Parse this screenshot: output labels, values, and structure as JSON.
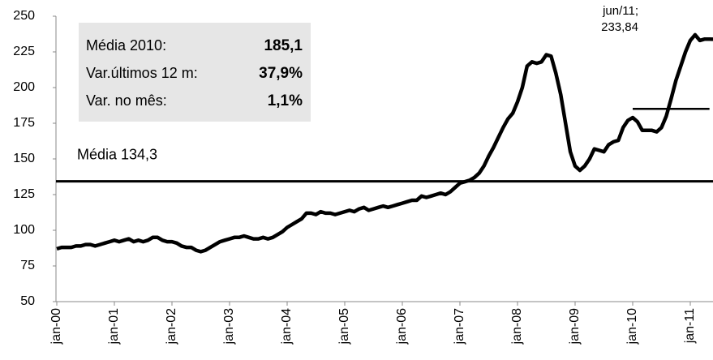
{
  "chart_data": {
    "type": "line",
    "categories": [
      "jan-00",
      null,
      null,
      null,
      null,
      null,
      null,
      null,
      null,
      null,
      null,
      null,
      "jan-01",
      null,
      null,
      null,
      null,
      null,
      null,
      null,
      null,
      null,
      null,
      null,
      "jan-02",
      null,
      null,
      null,
      null,
      null,
      null,
      null,
      null,
      null,
      null,
      null,
      "jan-03",
      null,
      null,
      null,
      null,
      null,
      null,
      null,
      null,
      null,
      null,
      null,
      "jan-04",
      null,
      null,
      null,
      null,
      null,
      null,
      null,
      null,
      null,
      null,
      null,
      "jan-05",
      null,
      null,
      null,
      null,
      null,
      null,
      null,
      null,
      null,
      null,
      null,
      "jan-06",
      null,
      null,
      null,
      null,
      null,
      null,
      null,
      null,
      null,
      null,
      null,
      "jan-07",
      null,
      null,
      null,
      null,
      null,
      null,
      null,
      null,
      null,
      null,
      null,
      "jan-08",
      null,
      null,
      null,
      null,
      null,
      null,
      null,
      null,
      null,
      null,
      null,
      "jan-09",
      null,
      null,
      null,
      null,
      null,
      null,
      null,
      null,
      null,
      null,
      null,
      "jan-10",
      null,
      null,
      null,
      null,
      null,
      null,
      null,
      null,
      null,
      null,
      null,
      "jan-11",
      null,
      null,
      null,
      null,
      null
    ],
    "series": [
      {
        "color": "#000000",
        "values": [
          87,
          88,
          88,
          88,
          89,
          89,
          90,
          90,
          89,
          90,
          91,
          92,
          93,
          92,
          93,
          94,
          92,
          93,
          92,
          93,
          95,
          95,
          93,
          92,
          92,
          91,
          89,
          88,
          88,
          86,
          85,
          86,
          88,
          90,
          92,
          93,
          94,
          95,
          95,
          96,
          95,
          94,
          94,
          95,
          94,
          95,
          97,
          99,
          102,
          104,
          106,
          108,
          112,
          112,
          111,
          113,
          112,
          112,
          111,
          112,
          113,
          114,
          113,
          115,
          116,
          114,
          115,
          116,
          117,
          116,
          117,
          118,
          119,
          120,
          121,
          121,
          124,
          123,
          124,
          125,
          126,
          125,
          127,
          130,
          133,
          134,
          135,
          137,
          140,
          145,
          152,
          158,
          165,
          172,
          178,
          182,
          190,
          200,
          215,
          218,
          217,
          218,
          223,
          222,
          210,
          195,
          175,
          155,
          145,
          142,
          145,
          150,
          157,
          156,
          155,
          160,
          162,
          163,
          172,
          177,
          179,
          176,
          170,
          170,
          170,
          169,
          172,
          180,
          192,
          205,
          215,
          225,
          233,
          237,
          233,
          234,
          234,
          233.84
        ]
      }
    ],
    "ylim": [
      50,
      250
    ],
    "yticks": [
      50,
      75,
      100,
      125,
      150,
      175,
      200,
      225,
      250
    ],
    "reference_lines": [
      {
        "label": "Média 134,3",
        "value": 134.3
      },
      {
        "value": 185.1
      }
    ],
    "stats": [
      {
        "label": "Média 2010:",
        "value": 185.1,
        "value_label": "185,1"
      },
      {
        "label": "Var.últimos 12 m:",
        "value": 37.9,
        "value_label": "37,9%"
      },
      {
        "label": "Var. no mês:",
        "value": 1.1,
        "value_label": "1,1%"
      }
    ],
    "annotation": [
      "jun/11;",
      "233,84"
    ]
  }
}
